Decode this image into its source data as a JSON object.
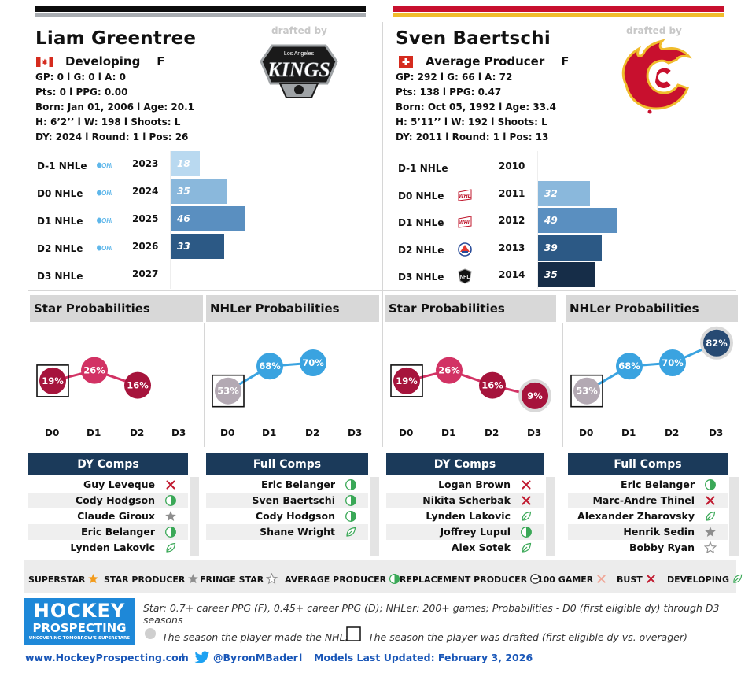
{
  "colors": {
    "black_bar": "#0c0c0c",
    "gray_bar": "#a8acb1",
    "red_bar": "#c8102e",
    "gold_bar": "#f0bc2c",
    "navy": "#1b3a5a",
    "crimson": "#a6143c",
    "pink": "#d23264",
    "gray_dot": "#b3a9b3",
    "sky": "#3aa3e0",
    "deep_navy": "#274a73"
  },
  "players": [
    {
      "name": "Liam Greentree",
      "drafted_label": "drafted by",
      "flag": "canada-flag-icon",
      "team_logo": "kings-logo",
      "status": "Developing",
      "position": "F",
      "stats": [
        "GP: 0 l G: 0 l A: 0",
        "Pts: 0 l PPG: 0.00",
        "Born: Jan 01, 2006 l Age: 20.1",
        "H: 6’2’’ l W: 198 l Shoots: L",
        "DY: 2024 l Round: 1 l Pos: 26"
      ],
      "nhle_rows": [
        {
          "label": "D-1 NHLe",
          "league": "ohl-logo",
          "year": "2023",
          "value": 18,
          "color": "#b9d9f0"
        },
        {
          "label": "D0 NHLe",
          "league": "ohl-logo",
          "year": "2024",
          "value": 35,
          "color": "#8ab8dc"
        },
        {
          "label": "D1 NHLe",
          "league": "ohl-logo",
          "year": "2025",
          "value": 46,
          "color": "#5a8fc0"
        },
        {
          "label": "D2 NHLe",
          "league": "ohl-logo",
          "year": "2026",
          "value": 33,
          "color": "#2c5985"
        },
        {
          "label": "D3 NHLe",
          "league": "",
          "year": "2027",
          "value": null,
          "color": ""
        }
      ],
      "star_title": "Star Probabilities",
      "nhler_title": "NHLer Probabilities",
      "star_probs": [
        {
          "x": "D0",
          "y": 19,
          "label": "19%"
        },
        {
          "x": "D1",
          "y": 26,
          "label": "26%"
        },
        {
          "x": "D2",
          "y": 16,
          "label": "16%"
        }
      ],
      "nhler_probs": [
        {
          "x": "D0",
          "y": 53,
          "label": "53%"
        },
        {
          "x": "D1",
          "y": 68,
          "label": "68%"
        },
        {
          "x": "D2",
          "y": 70,
          "label": "70%"
        }
      ],
      "dy_comps_title": "DY Comps",
      "dy_comps": [
        {
          "name": "Guy Leveque",
          "icon": "bust-icon"
        },
        {
          "name": "Cody Hodgson",
          "icon": "average-producer-icon"
        },
        {
          "name": "Claude Giroux",
          "icon": "star-producer-icon"
        },
        {
          "name": "Eric Belanger",
          "icon": "average-producer-icon"
        },
        {
          "name": "Lynden Lakovic",
          "icon": "developing-icon"
        }
      ],
      "full_comps_title": "Full Comps",
      "full_comps": [
        {
          "name": "Eric Belanger",
          "icon": "average-producer-icon"
        },
        {
          "name": "Sven Baertschi",
          "icon": "average-producer-icon"
        },
        {
          "name": "Cody Hodgson",
          "icon": "average-producer-icon"
        },
        {
          "name": "Shane Wright",
          "icon": "developing-icon"
        }
      ]
    },
    {
      "name": "Sven Baertschi",
      "drafted_label": "drafted by",
      "flag": "switzerland-flag-icon",
      "team_logo": "flames-logo",
      "status": "Average Producer",
      "position": "F",
      "stats": [
        "GP: 292 l G: 66 l A: 72",
        "Pts: 138 l PPG: 0.47",
        "Born: Oct 05, 1992 l Age: 33.4",
        "H: 5’11’’ l W: 192 l Shoots: L",
        "DY: 2011 l Round: 1 l Pos: 13"
      ],
      "nhle_rows": [
        {
          "label": "D-1 NHLe",
          "league": "",
          "year": "2010",
          "value": null,
          "color": ""
        },
        {
          "label": "D0 NHLe",
          "league": "whl-logo",
          "year": "2011",
          "value": 32,
          "color": "#8ab8dc"
        },
        {
          "label": "D1 NHLe",
          "league": "whl-logo",
          "year": "2012",
          "value": 49,
          "color": "#5a8fc0"
        },
        {
          "label": "D2 NHLe",
          "league": "ahl-logo",
          "year": "2013",
          "value": 39,
          "color": "#2c5985"
        },
        {
          "label": "D3 NHLe",
          "league": "nhl-logo",
          "year": "2014",
          "value": 35,
          "color": "#162d48"
        }
      ],
      "star_title": "Star Probabilities",
      "nhler_title": "NHLer Probabilities",
      "star_probs": [
        {
          "x": "D0",
          "y": 19,
          "label": "19%"
        },
        {
          "x": "D1",
          "y": 26,
          "label": "26%"
        },
        {
          "x": "D2",
          "y": 16,
          "label": "16%"
        },
        {
          "x": "D3",
          "y": 9,
          "label": "9%"
        }
      ],
      "nhler_probs": [
        {
          "x": "D0",
          "y": 53,
          "label": "53%"
        },
        {
          "x": "D1",
          "y": 68,
          "label": "68%"
        },
        {
          "x": "D2",
          "y": 70,
          "label": "70%"
        },
        {
          "x": "D3",
          "y": 82,
          "label": "82%"
        }
      ],
      "dy_comps_title": "DY Comps",
      "dy_comps": [
        {
          "name": "Logan Brown",
          "icon": "bust-icon"
        },
        {
          "name": "Nikita Scherbak",
          "icon": "bust-icon"
        },
        {
          "name": "Lynden Lakovic",
          "icon": "developing-icon"
        },
        {
          "name": "Joffrey Lupul",
          "icon": "average-producer-icon"
        },
        {
          "name": "Alex Sotek",
          "icon": "developing-icon"
        }
      ],
      "full_comps_title": "Full Comps",
      "full_comps": [
        {
          "name": "Eric Belanger",
          "icon": "average-producer-icon"
        },
        {
          "name": "Marc-Andre Thinel",
          "icon": "bust-icon"
        },
        {
          "name": "Alexander Zharovsky",
          "icon": "developing-icon"
        },
        {
          "name": "Henrik Sedin",
          "icon": "star-producer-icon"
        },
        {
          "name": "Bobby Ryan",
          "icon": "fringe-star-icon"
        }
      ]
    }
  ],
  "x_ticks": [
    "D0",
    "D1",
    "D2",
    "D3"
  ],
  "legend": [
    {
      "label": "SUPERSTAR",
      "icon": "superstar-icon"
    },
    {
      "label": "STAR PRODUCER",
      "icon": "star-producer-icon"
    },
    {
      "label": "FRINGE STAR",
      "icon": "fringe-star-icon"
    },
    {
      "label": "AVERAGE PRODUCER",
      "icon": "average-producer-icon"
    },
    {
      "label": "REPLACEMENT PRODUCER",
      "icon": "replacement-producer-icon"
    },
    {
      "label": "100 GAMER",
      "icon": "hundred-gamer-icon"
    },
    {
      "label": "BUST",
      "icon": "bust-icon"
    },
    {
      "label": "DEVELOPING",
      "icon": "developing-icon"
    }
  ],
  "brand": {
    "line1": "HOCKEY",
    "line2": "PROSPECTING",
    "tagline": "UNCOVERING TOMORROW'S SUPERSTARS"
  },
  "footnote": "Star: 0.7+ career PPG (F), 0.45+ career PPG (D); NHLer: 200+ games; Probabilities - D0 (first eligible dy) through D3 seasons",
  "legend_nhl": "The season the player made the NHL;",
  "legend_drafted": "The season the player was drafted (first eligible dy vs. overager)",
  "footer": {
    "site": "www.HockeyProspecting.com",
    "sep": "l",
    "twitter": "@ByronMBader",
    "updated": "Models Last Updated: February 3, 2026"
  },
  "chart_data": [
    {
      "type": "bar",
      "title": "Liam Greentree NHLe",
      "categories": [
        "D-1 NHLe",
        "D0 NHLe",
        "D1 NHLe",
        "D2 NHLe",
        "D3 NHLe"
      ],
      "years": [
        "2023",
        "2024",
        "2025",
        "2026",
        "2027"
      ],
      "values": [
        18,
        35,
        46,
        33,
        null
      ]
    },
    {
      "type": "line",
      "title": "Star Probabilities",
      "categories": [
        "D0",
        "D1",
        "D2",
        "D3"
      ],
      "values": [
        19,
        26,
        16,
        null
      ]
    },
    {
      "type": "line",
      "title": "NHLer Probabilities",
      "categories": [
        "D0",
        "D1",
        "D2",
        "D3"
      ],
      "values": [
        53,
        68,
        70,
        null
      ]
    },
    {
      "type": "bar",
      "title": "Sven Baertschi NHLe",
      "categories": [
        "D-1 NHLe",
        "D0 NHLe",
        "D1 NHLe",
        "D2 NHLe",
        "D3 NHLe"
      ],
      "years": [
        "2010",
        "2011",
        "2012",
        "2013",
        "2014"
      ],
      "values": [
        null,
        32,
        49,
        39,
        35
      ]
    },
    {
      "type": "line",
      "title": "Star Probabilities",
      "categories": [
        "D0",
        "D1",
        "D2",
        "D3"
      ],
      "values": [
        19,
        26,
        16,
        9
      ]
    },
    {
      "type": "line",
      "title": "NHLer Probabilities",
      "categories": [
        "D0",
        "D1",
        "D2",
        "D3"
      ],
      "values": [
        53,
        68,
        70,
        82
      ]
    }
  ]
}
